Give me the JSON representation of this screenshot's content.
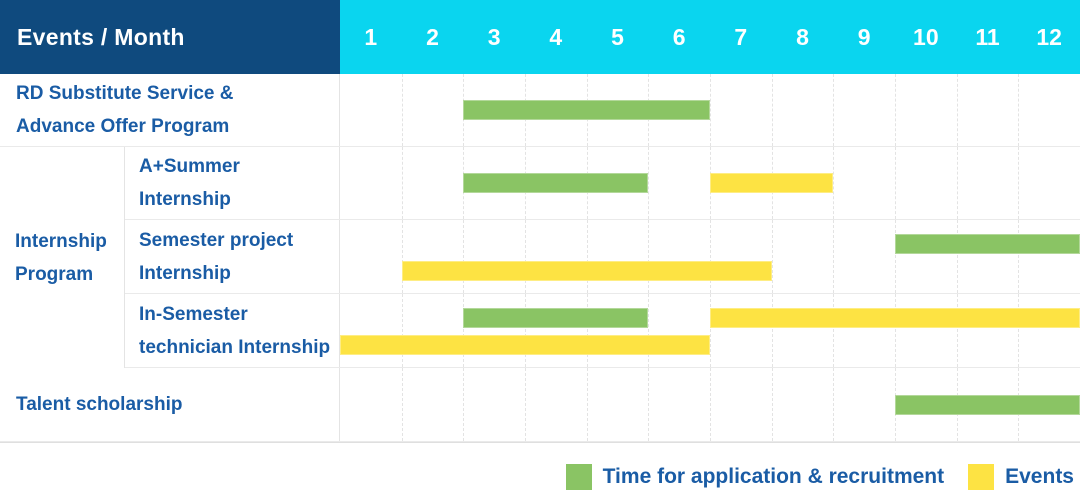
{
  "colors": {
    "navy": "#0F4A7E",
    "cyan": "#0AD5EF",
    "label_blue": "#1A5CA5",
    "green": "#8AC464",
    "yellow": "#FDE343",
    "grid": "#E3E3E3"
  },
  "header": {
    "title": "Events / Month",
    "months": [
      "1",
      "2",
      "3",
      "4",
      "5",
      "6",
      "7",
      "8",
      "9",
      "10",
      "11",
      "12"
    ]
  },
  "legend": {
    "items": [
      {
        "label": "Time for application & recruitment",
        "color_key": "green",
        "kind": "recruitment"
      },
      {
        "label": "Events",
        "color_key": "yellow",
        "kind": "event"
      }
    ]
  },
  "chart_data": {
    "type": "gantt",
    "unit": "month",
    "x_range": [
      1,
      12
    ],
    "columns": [
      "1",
      "2",
      "3",
      "4",
      "5",
      "6",
      "7",
      "8",
      "9",
      "10",
      "11",
      "12"
    ],
    "grid": "dashed-vertical",
    "legend_position": "bottom-right",
    "group": {
      "label": "Internship Program",
      "lines": [
        "Internship",
        "Program"
      ]
    },
    "rows": [
      {
        "label": "RD Substitute Service & Advance Offer Program",
        "group": null,
        "lines": [
          "RD Substitute Service &",
          "Advance Offer Program"
        ],
        "bars": [
          {
            "kind": "recruitment",
            "start_month": 3,
            "end_month": 6,
            "track": "center"
          }
        ]
      },
      {
        "label": "A+Summer Internship",
        "group": "Internship Program",
        "lines": [
          "A+Summer",
          "Internship"
        ],
        "bars": [
          {
            "kind": "recruitment",
            "start_month": 3,
            "end_month": 5,
            "track": "center"
          },
          {
            "kind": "event",
            "start_month": 7,
            "end_month": 8,
            "track": "center"
          }
        ]
      },
      {
        "label": "Semester project Internship",
        "group": "Internship Program",
        "lines": [
          "Semester project",
          "Internship"
        ],
        "bars": [
          {
            "kind": "recruitment",
            "start_month": 10,
            "end_month": 12,
            "track": "top"
          },
          {
            "kind": "event",
            "start_month": 2,
            "end_month": 7,
            "track": "bottom"
          }
        ]
      },
      {
        "label": "In-Semester technician Internship",
        "group": "Internship Program",
        "lines": [
          "In-Semester",
          "technician Internship"
        ],
        "bars": [
          {
            "kind": "recruitment",
            "start_month": 3,
            "end_month": 5,
            "track": "top"
          },
          {
            "kind": "event",
            "start_month": 7,
            "end_month": 12,
            "track": "top"
          },
          {
            "kind": "event",
            "start_month": 1,
            "end_month": 6,
            "track": "bottom"
          }
        ]
      },
      {
        "label": "Talent scholarship",
        "group": null,
        "lines": [
          "Talent scholarship"
        ],
        "bars": [
          {
            "kind": "recruitment",
            "start_month": 10,
            "end_month": 12,
            "track": "center"
          }
        ]
      }
    ]
  }
}
